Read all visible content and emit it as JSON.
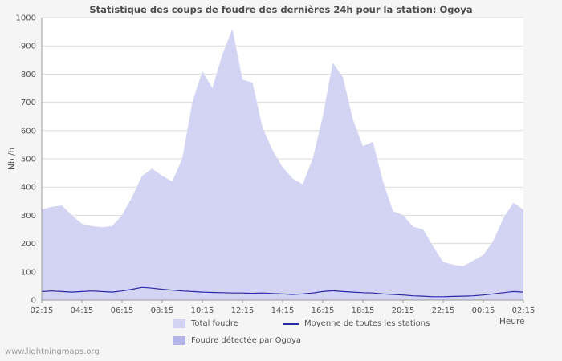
{
  "page": {
    "watermark": "www.lightningmaps.org"
  },
  "chart_data": {
    "type": "area",
    "title": "Statistique des coups de foudre des dernières 24h pour la station: Ogoya",
    "xlabel": "Heure",
    "ylabel": "Nb /h",
    "ylim": [
      0,
      1000
    ],
    "ytick_step": 100,
    "grid": "horizontal",
    "legend_position": "bottom",
    "x_step_minutes": 30,
    "x_tick_every": 4,
    "x_tick_labels": [
      "02:15",
      "04:15",
      "06:15",
      "08:15",
      "10:15",
      "12:15",
      "14:15",
      "16:15",
      "18:15",
      "20:15",
      "22:15",
      "00:15",
      "02:15"
    ],
    "series": [
      {
        "name": "Total foudre",
        "type": "area",
        "color": "#d3d3f3",
        "values": [
          320,
          330,
          335,
          300,
          270,
          262,
          258,
          262,
          300,
          365,
          440,
          465,
          440,
          420,
          500,
          700,
          810,
          750,
          870,
          960,
          780,
          770,
          610,
          530,
          470,
          430,
          410,
          500,
          650,
          840,
          790,
          640,
          545,
          560,
          420,
          315,
          300,
          260,
          250,
          190,
          135,
          125,
          120,
          140,
          160,
          210,
          290,
          345,
          320
        ]
      },
      {
        "name": "Foudre détectée par Ogoya",
        "type": "area",
        "color": "#b3b3e6",
        "values": [
          0,
          0,
          0,
          0,
          0,
          0,
          0,
          0,
          0,
          0,
          0,
          0,
          0,
          0,
          0,
          0,
          0,
          0,
          0,
          0,
          0,
          0,
          0,
          0,
          0,
          0,
          0,
          0,
          0,
          0,
          0,
          0,
          0,
          0,
          0,
          0,
          0,
          0,
          0,
          0,
          0,
          0,
          0,
          0,
          0,
          0,
          0,
          0,
          0
        ]
      },
      {
        "name": "Moyenne de toutes les stations",
        "type": "line",
        "color": "#2a2aa5",
        "values": [
          30,
          32,
          30,
          28,
          30,
          32,
          30,
          28,
          32,
          38,
          45,
          42,
          38,
          35,
          32,
          30,
          28,
          27,
          26,
          25,
          25,
          24,
          25,
          23,
          22,
          20,
          22,
          25,
          30,
          33,
          30,
          28,
          26,
          25,
          22,
          20,
          18,
          15,
          14,
          12,
          12,
          13,
          14,
          15,
          18,
          22,
          26,
          30,
          28
        ]
      }
    ]
  }
}
